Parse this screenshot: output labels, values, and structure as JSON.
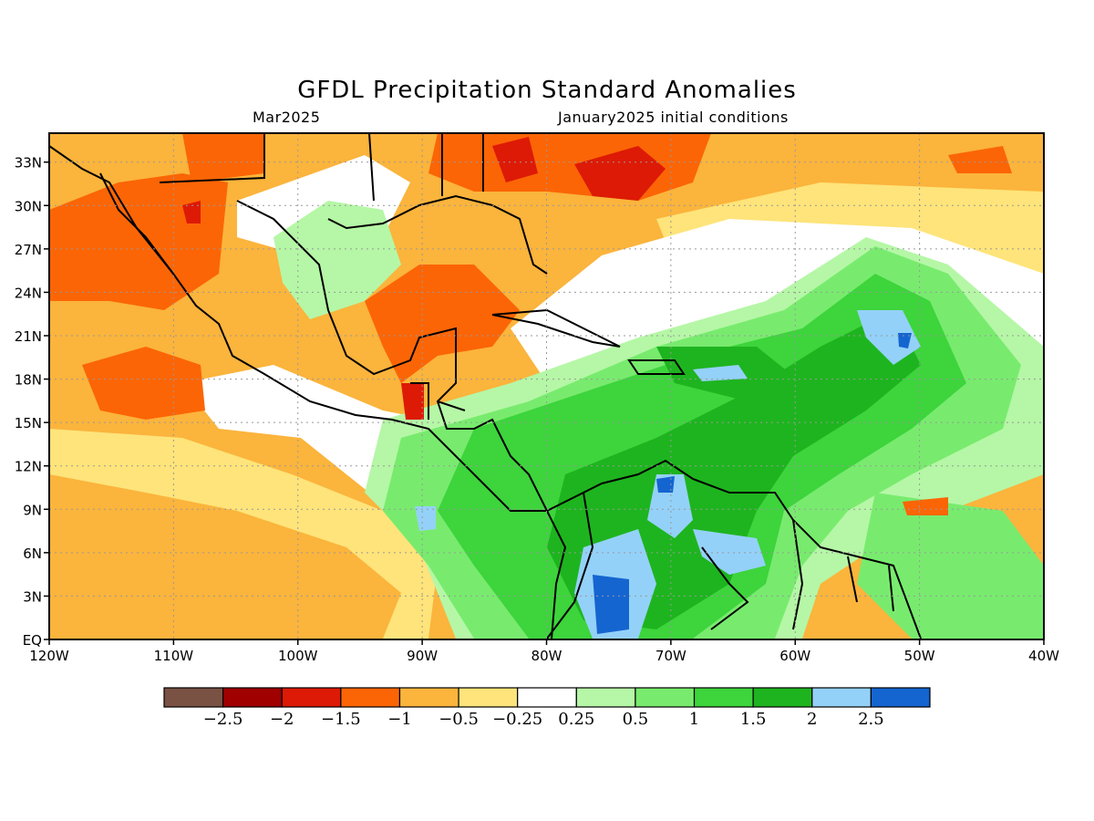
{
  "title": "GFDL Precipitation Standard Anomalies",
  "valid_month": "Mar2025",
  "initial_conditions": "January2025 initial conditions",
  "map": {
    "lon_range": [
      -120,
      -40
    ],
    "lat_range": [
      0,
      35
    ],
    "x_ticks": [
      {
        "lon": -120,
        "label": "120W"
      },
      {
        "lon": -110,
        "label": "110W"
      },
      {
        "lon": -100,
        "label": "100W"
      },
      {
        "lon": -90,
        "label": "90W"
      },
      {
        "lon": -80,
        "label": "80W"
      },
      {
        "lon": -70,
        "label": "70W"
      },
      {
        "lon": -60,
        "label": "60W"
      },
      {
        "lon": -50,
        "label": "50W"
      },
      {
        "lon": -40,
        "label": "40W"
      }
    ],
    "y_ticks": [
      {
        "lat": 0,
        "label": "EQ"
      },
      {
        "lat": 3,
        "label": "3N"
      },
      {
        "lat": 6,
        "label": "6N"
      },
      {
        "lat": 9,
        "label": "9N"
      },
      {
        "lat": 12,
        "label": "12N"
      },
      {
        "lat": 15,
        "label": "15N"
      },
      {
        "lat": 18,
        "label": "18N"
      },
      {
        "lat": 21,
        "label": "21N"
      },
      {
        "lat": 24,
        "label": "24N"
      },
      {
        "lat": 27,
        "label": "27N"
      },
      {
        "lat": 30,
        "label": "30N"
      },
      {
        "lat": 33,
        "label": "33N"
      }
    ]
  },
  "colorbar": {
    "colors": [
      "#7a5244",
      "#a00000",
      "#dd1a05",
      "#fb6506",
      "#fbb43c",
      "#fee47a",
      "#ffffff",
      "#b5f7a6",
      "#78eb6e",
      "#3dd43c",
      "#1eb41f",
      "#94d1f8",
      "#1565d0"
    ],
    "labels": [
      "-2.5",
      "-2",
      "-1.5",
      "-1",
      "-0.5",
      "-0.25",
      "0.25",
      "0.5",
      "1",
      "1.5",
      "2",
      "2.5"
    ]
  },
  "anomaly_regions": [
    {
      "level": -1.5,
      "area": "Southeast US"
    },
    {
      "level": -1.5,
      "area": "western Atlantic east of Florida"
    },
    {
      "level": -1.5,
      "area": "Yucatan / Gulf of Honduras"
    },
    {
      "level": -1,
      "area": "northwest Mexico and Gulf of California"
    },
    {
      "level": -1,
      "area": "eastern Pacific west of Mexico"
    },
    {
      "level": -1,
      "area": "southern Gulf of Mexico"
    },
    {
      "level": -0.5,
      "area": "eastern tropical Pacific"
    },
    {
      "level": 1.5,
      "area": "Caribbean Sea"
    },
    {
      "level": 2,
      "area": "Colombia and Venezuela"
    },
    {
      "level": 2.5,
      "area": "western Colombia"
    },
    {
      "level": 2,
      "area": "central tropical Atlantic near 21N 55W"
    }
  ]
}
